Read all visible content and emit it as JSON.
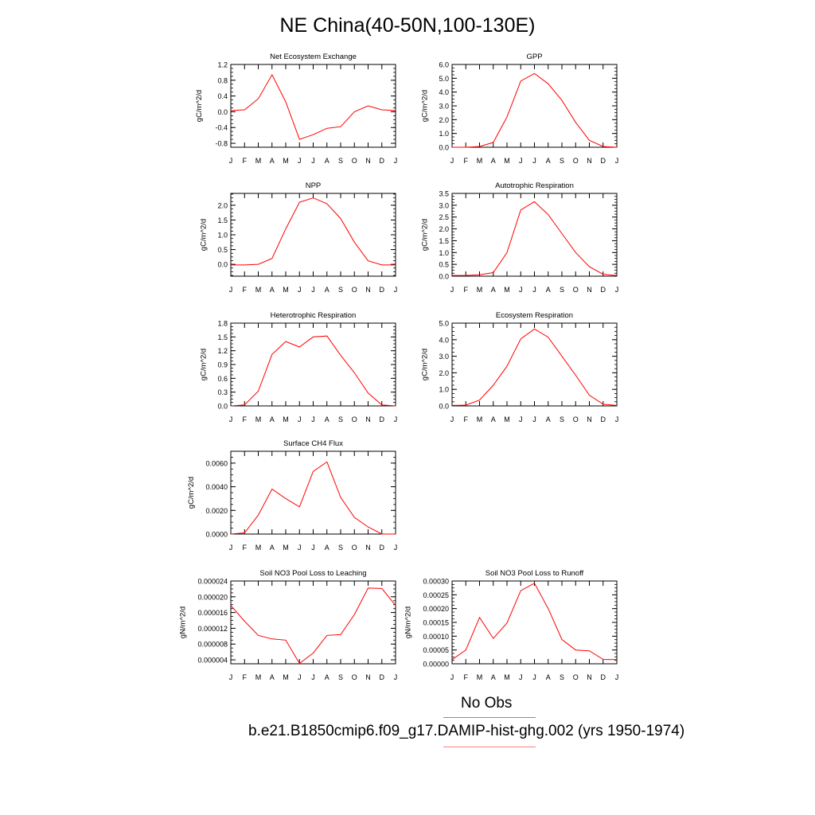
{
  "title": "NE China(40-50N,100-130E)",
  "months": [
    "J",
    "F",
    "M",
    "A",
    "M",
    "J",
    "J",
    "A",
    "S",
    "O",
    "N",
    "D",
    "J"
  ],
  "line_color": "#ff0000",
  "legend": {
    "obs_label": "No Obs",
    "obs_color": "#7f7fff",
    "model_label": "b.e21.B1850cmip6.f09_g17.DAMIP-hist-ghg.002 (yrs 1950-1974)",
    "model_color": "#ff7f7f"
  },
  "chart_data": [
    {
      "type": "line",
      "title": "Net Ecosystem Exchange",
      "ylabel": "gC/m^2/d",
      "ylim": [
        -0.9,
        1.2
      ],
      "yticks": [
        -0.8,
        -0.4,
        0.0,
        0.4,
        0.8,
        1.2
      ],
      "ytick_labels": [
        "-0.8",
        "-0.4",
        "0.0",
        "0.4",
        "0.8",
        "1.2"
      ],
      "values": [
        0.03,
        0.05,
        0.33,
        0.94,
        0.25,
        -0.7,
        -0.58,
        -0.42,
        -0.38,
        0.0,
        0.15,
        0.05,
        0.03
      ]
    },
    {
      "type": "line",
      "title": "GPP",
      "ylabel": "gC/m^2/d",
      "ylim": [
        0,
        6
      ],
      "yticks": [
        0,
        1,
        2,
        3,
        4,
        5,
        6
      ],
      "ytick_labels": [
        "0.0",
        "1.0",
        "2.0",
        "3.0",
        "4.0",
        "5.0",
        "6.0"
      ],
      "values": [
        0.0,
        0.0,
        0.05,
        0.35,
        2.2,
        4.8,
        5.35,
        4.6,
        3.4,
        1.8,
        0.5,
        0.05,
        0.0
      ]
    },
    {
      "type": "line",
      "title": "NPP",
      "ylabel": "gC/m^2/d",
      "ylim": [
        -0.4,
        2.4
      ],
      "yticks": [
        0.0,
        0.5,
        1.0,
        1.5,
        2.0
      ],
      "ytick_labels": [
        "0.0",
        "0.5",
        "1.0",
        "1.5",
        "2.0"
      ],
      "values": [
        -0.02,
        -0.02,
        0.0,
        0.2,
        1.2,
        2.1,
        2.25,
        2.05,
        1.55,
        0.75,
        0.12,
        -0.02,
        -0.02
      ]
    },
    {
      "type": "line",
      "title": "Autotrophic Respiration",
      "ylabel": "gC/m^2/d",
      "ylim": [
        0,
        3.5
      ],
      "yticks": [
        0,
        0.5,
        1,
        1.5,
        2,
        2.5,
        3,
        3.5
      ],
      "ytick_labels": [
        "0.0",
        "0.5",
        "1.0",
        "1.5",
        "2.0",
        "2.5",
        "3.0",
        "3.5"
      ],
      "values": [
        0.03,
        0.03,
        0.06,
        0.15,
        1.0,
        2.8,
        3.15,
        2.6,
        1.8,
        1.0,
        0.4,
        0.08,
        0.03
      ]
    },
    {
      "type": "line",
      "title": "Heterotrophic Respiration",
      "ylabel": "gC/m^2/d",
      "ylim": [
        0,
        1.8
      ],
      "yticks": [
        0,
        0.3,
        0.6,
        0.9,
        1.2,
        1.5,
        1.8
      ],
      "ytick_labels": [
        "0.0",
        "0.3",
        "0.6",
        "0.9",
        "1.2",
        "1.5",
        "1.8"
      ],
      "values": [
        0.0,
        0.02,
        0.32,
        1.12,
        1.4,
        1.28,
        1.5,
        1.52,
        1.1,
        0.72,
        0.28,
        0.02,
        0.0
      ]
    },
    {
      "type": "line",
      "title": "Ecosystem Respiration",
      "ylabel": "gC/m^2/d",
      "ylim": [
        0,
        5
      ],
      "yticks": [
        0,
        1,
        2,
        3,
        4,
        5
      ],
      "ytick_labels": [
        "0.0",
        "1.0",
        "2.0",
        "3.0",
        "4.0",
        "5.0"
      ],
      "values": [
        0.03,
        0.05,
        0.35,
        1.25,
        2.4,
        4.05,
        4.65,
        4.15,
        3.0,
        1.85,
        0.65,
        0.1,
        0.03
      ]
    },
    {
      "type": "line",
      "title": "Surface CH4 Flux",
      "ylabel": "gC/m^2/d",
      "ylim": [
        0,
        0.007
      ],
      "yticks": [
        0,
        0.002,
        0.004,
        0.006
      ],
      "ytick_labels": [
        "0.0000",
        "0.0020",
        "0.0040",
        "0.0060"
      ],
      "values": [
        0.0,
        0.0001,
        0.0016,
        0.0038,
        0.003,
        0.0023,
        0.0053,
        0.0061,
        0.0031,
        0.0014,
        0.0006,
        0.0,
        0.0
      ]
    },
    {
      "type": "line",
      "title": "Soil NO3 Pool Loss to Leaching",
      "ylabel": "gN/m^2/d",
      "ylim": [
        3e-06,
        2.4e-05
      ],
      "yticks": [
        4e-06,
        8e-06,
        1.2e-05,
        1.6e-05,
        2e-05,
        2.4e-05
      ],
      "ytick_labels": [
        "0.000004",
        "0.000008",
        "0.000012",
        "0.000016",
        "0.000020",
        "0.000024"
      ],
      "values": [
        1.78e-05,
        1.38e-05,
        1.02e-05,
        9.3e-06,
        9e-06,
        3.1e-06,
        5.7e-06,
        1.02e-05,
        1.04e-05,
        1.55e-05,
        2.22e-05,
        2.21e-05,
        1.78e-05
      ]
    },
    {
      "type": "line",
      "title": "Soil NO3 Pool Loss to Runoff",
      "ylabel": "gN/m^2/d",
      "ylim": [
        0,
        0.0003
      ],
      "yticks": [
        0,
        5e-05,
        0.0001,
        0.00015,
        0.0002,
        0.00025,
        0.0003
      ],
      "ytick_labels": [
        "0.00000",
        "0.00005",
        "0.00010",
        "0.00015",
        "0.00020",
        "0.00025",
        "0.00030"
      ],
      "values": [
        1.5e-05,
        5e-05,
        0.000168,
        9.2e-05,
        0.000148,
        0.000265,
        0.000292,
        0.0002,
        8.8e-05,
        5e-05,
        4.7e-05,
        1.6e-05,
        1.5e-05
      ]
    }
  ]
}
